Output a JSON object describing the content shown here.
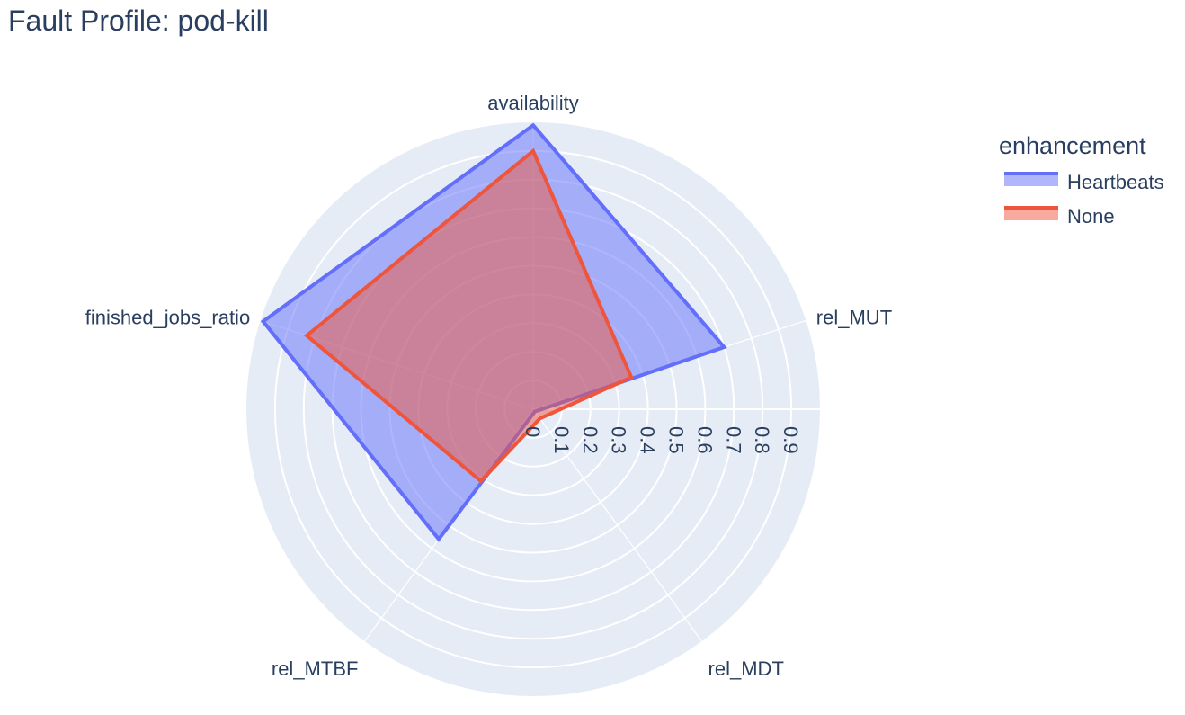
{
  "chart_data": {
    "type": "radar",
    "title": "Fault Profile: pod-kill",
    "axes": [
      "availability",
      "finished_jobs_ratio",
      "rel_MTBF",
      "rel_MDT",
      "rel_MUT"
    ],
    "radial_ticks": [
      "0",
      "0.1",
      "0.2",
      "0.3",
      "0.4",
      "0.5",
      "0.6",
      "0.7",
      "0.8",
      "0.9"
    ],
    "range": [
      0,
      1
    ],
    "legend_title": "enhancement",
    "legend_position": "top-right",
    "series": [
      {
        "name": "Heartbeats",
        "line_color": "#636efa",
        "fill_color": "rgba(99,110,250,0.5)",
        "values": [
          0.99,
          0.99,
          0.56,
          0.01,
          0.7
        ]
      },
      {
        "name": "None",
        "line_color": "#ef553b",
        "fill_color": "rgba(239,85,59,0.5)",
        "values": [
          0.9,
          0.83,
          0.31,
          0.04,
          0.36
        ]
      }
    ],
    "background_color": "#e5ecf6",
    "grid_color": "#ffffff"
  }
}
